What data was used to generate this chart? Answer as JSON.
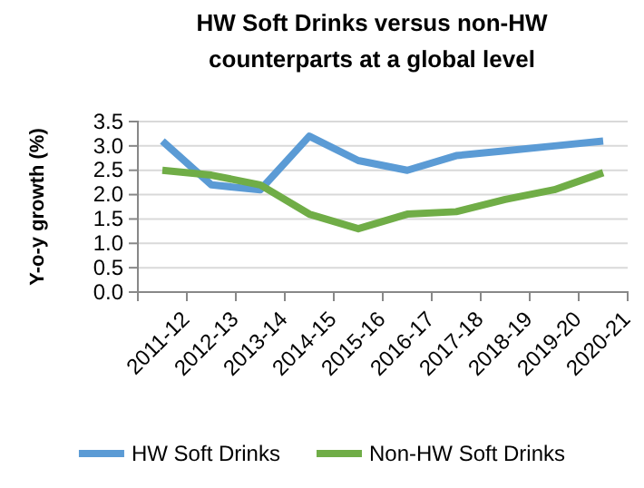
{
  "chart_data": {
    "type": "line",
    "title": "HW Soft Drinks versus non-HW counterparts at a global level",
    "ylabel": "Y-o-y growth (%)",
    "categories": [
      "2011-12",
      "2012-13",
      "2013-14",
      "2014-15",
      "2015-16",
      "2016-17",
      "2017-18",
      "2018-19",
      "2019-20",
      "2020-21"
    ],
    "series": [
      {
        "name": "HW Soft Drinks",
        "color": "#5b9bd5",
        "values": [
          3.1,
          2.2,
          2.1,
          3.2,
          2.7,
          2.5,
          2.8,
          2.9,
          3.0,
          3.1
        ]
      },
      {
        "name": "Non-HW Soft Drinks",
        "color": "#70ad47",
        "values": [
          2.5,
          2.4,
          2.2,
          1.6,
          1.3,
          1.6,
          1.65,
          1.9,
          2.1,
          2.45
        ]
      }
    ],
    "ylim": [
      0,
      3.5
    ],
    "yticks": [
      {
        "value": 0,
        "label": "0.0"
      },
      {
        "value": 0.5,
        "label": "0.5"
      },
      {
        "value": 1,
        "label": "1.0"
      },
      {
        "value": 1.5,
        "label": "1.5"
      },
      {
        "value": 2,
        "label": "2.0"
      },
      {
        "value": 2.5,
        "label": "2.5"
      },
      {
        "value": 3,
        "label": "3.0"
      },
      {
        "value": 3.5,
        "label": "3.5"
      }
    ],
    "grid": "y",
    "legend": "bottom",
    "marker": "none",
    "line_style": "solid"
  }
}
